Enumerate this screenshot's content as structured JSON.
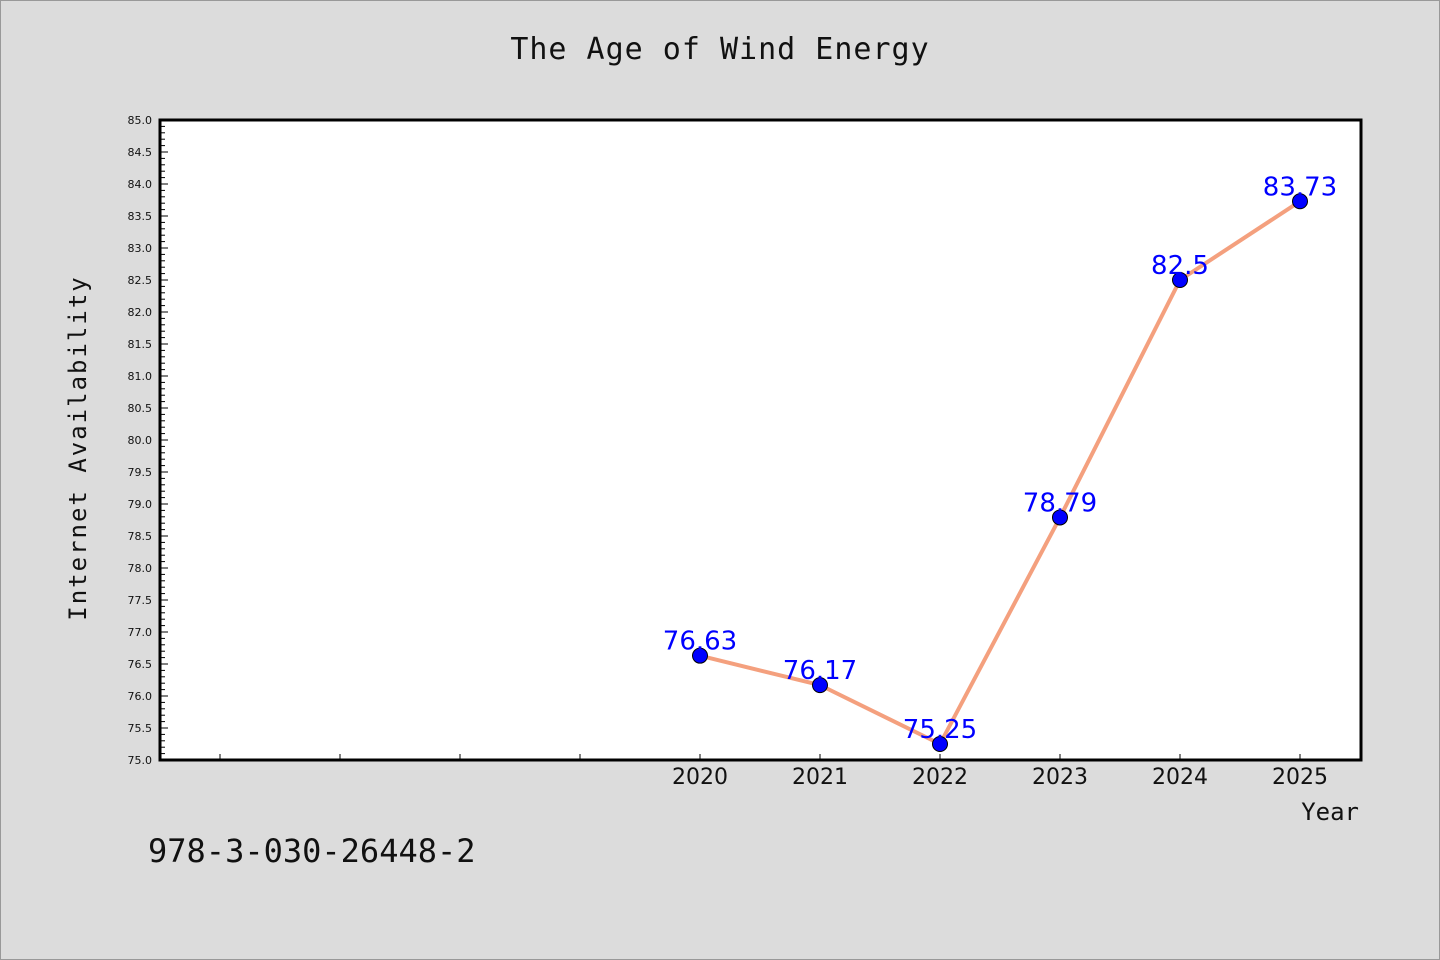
{
  "chart_data": {
    "type": "line",
    "title": "The Age of Wind Energy",
    "xlabel": "Year",
    "ylabel": "Internet Availability",
    "x": [
      "2020",
      "2021",
      "2022",
      "2023",
      "2024",
      "2025"
    ],
    "values": [
      76.63,
      76.17,
      75.25,
      78.79,
      82.5,
      83.73
    ],
    "data_labels": [
      "76.63",
      "76.17",
      "75.25",
      "78.79",
      "82.5",
      "83.73"
    ],
    "ylim": [
      75.0,
      85.0
    ],
    "yticks": [
      "75.0",
      "75.5",
      "76.0",
      "76.5",
      "77.0",
      "77.5",
      "78.0",
      "78.5",
      "79.0",
      "79.5",
      "80.0",
      "80.5",
      "81.0",
      "81.5",
      "82.0",
      "82.5",
      "83.0",
      "83.5",
      "84.0",
      "84.5",
      "85.0"
    ],
    "grid": false,
    "line_color": "#f4a07e",
    "marker_color": "#0000ff",
    "label_color": "#0000ff"
  },
  "footer": {
    "code": "978-3-030-26448-2"
  }
}
